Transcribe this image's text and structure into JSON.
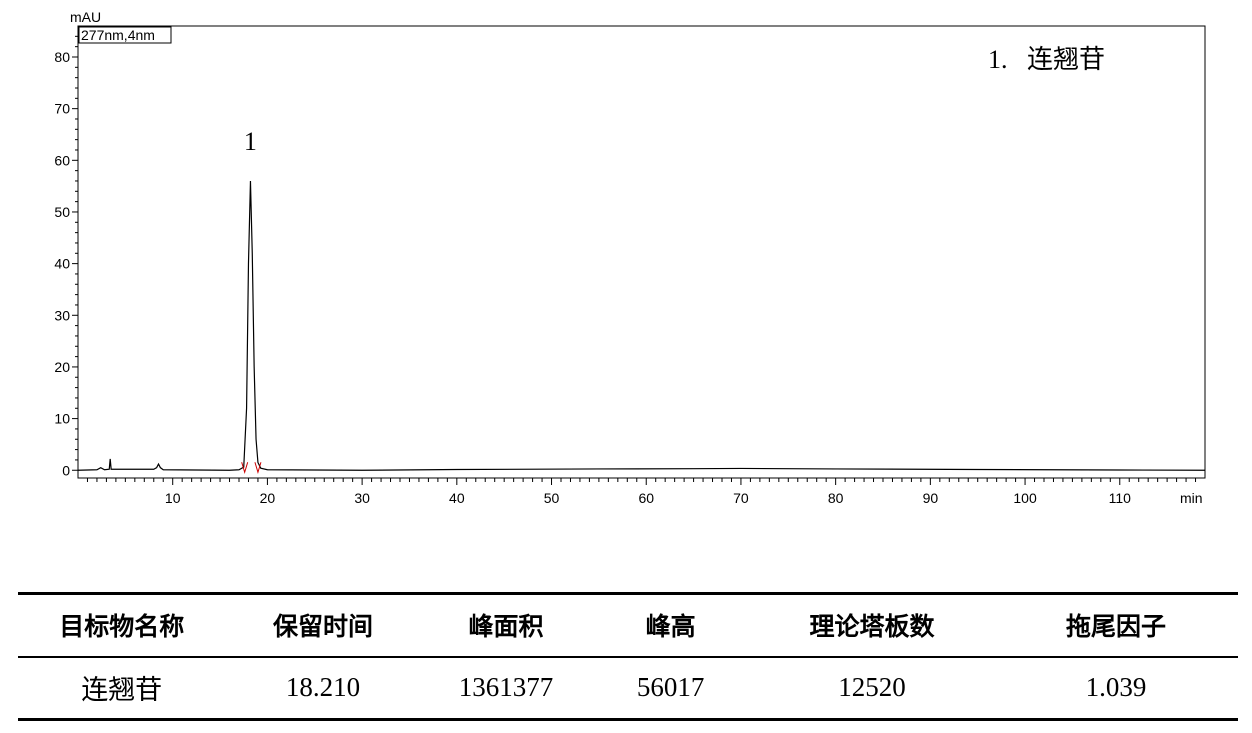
{
  "chart_data": {
    "type": "line",
    "ylabel": "mAU",
    "xlabel": "min",
    "channel_label": "277nm,4nm",
    "xlim": [
      0,
      119
    ],
    "ylim": [
      -1.5,
      86
    ],
    "x_ticks": [
      "10",
      "20",
      "30",
      "40",
      "50",
      "60",
      "70",
      "80",
      "90",
      "100",
      "110"
    ],
    "x_tick_values": [
      10,
      20,
      30,
      40,
      50,
      60,
      70,
      80,
      90,
      100,
      110
    ],
    "y_ticks": [
      "0",
      "10",
      "20",
      "30",
      "40",
      "50",
      "60",
      "70",
      "80"
    ],
    "y_tick_values": [
      0,
      10,
      20,
      30,
      40,
      50,
      60,
      70,
      80
    ],
    "series": [
      {
        "color": "#000000",
        "points": [
          [
            0.0,
            0.0
          ],
          [
            2.0,
            0.1
          ],
          [
            2.4,
            0.5
          ],
          [
            2.8,
            0.1
          ],
          [
            3.3,
            0.2
          ],
          [
            3.4,
            2.2
          ],
          [
            3.5,
            0.2
          ],
          [
            8.0,
            0.2
          ],
          [
            8.3,
            0.5
          ],
          [
            8.5,
            1.2
          ],
          [
            8.7,
            0.5
          ],
          [
            9.0,
            0.1
          ],
          [
            16.0,
            0.0
          ],
          [
            17.0,
            0.1
          ],
          [
            17.5,
            0.6
          ],
          [
            17.8,
            12.0
          ],
          [
            18.0,
            40.0
          ],
          [
            18.21,
            56.0
          ],
          [
            18.4,
            42.0
          ],
          [
            18.6,
            20.0
          ],
          [
            18.8,
            6.0
          ],
          [
            19.0,
            1.5
          ],
          [
            19.3,
            0.4
          ],
          [
            20.0,
            0.1
          ],
          [
            30.0,
            0.0
          ],
          [
            40.0,
            0.15
          ],
          [
            55.0,
            0.25
          ],
          [
            65.0,
            0.3
          ],
          [
            70.0,
            0.35
          ],
          [
            80.0,
            0.25
          ],
          [
            95.0,
            0.15
          ],
          [
            110.0,
            0.05
          ],
          [
            119.0,
            0.0
          ]
        ]
      }
    ],
    "peak_markers": [
      {
        "x": 17.6,
        "color": "#cc0000"
      },
      {
        "x": 19.0,
        "color": "#cc0000"
      }
    ],
    "annotations": [
      {
        "text": "1",
        "x": 18.2,
        "y": 62
      }
    ],
    "legend": {
      "placement": "top-right",
      "text": "1.   连翘苷"
    }
  },
  "table": {
    "headers": [
      "目标物名称",
      "保留时间",
      "峰面积",
      "峰高",
      "理论塔板数",
      "拖尾因子"
    ],
    "rows": [
      [
        "连翘苷",
        "18.210",
        "1361377",
        "56017",
        "12520",
        "1.039"
      ]
    ]
  }
}
